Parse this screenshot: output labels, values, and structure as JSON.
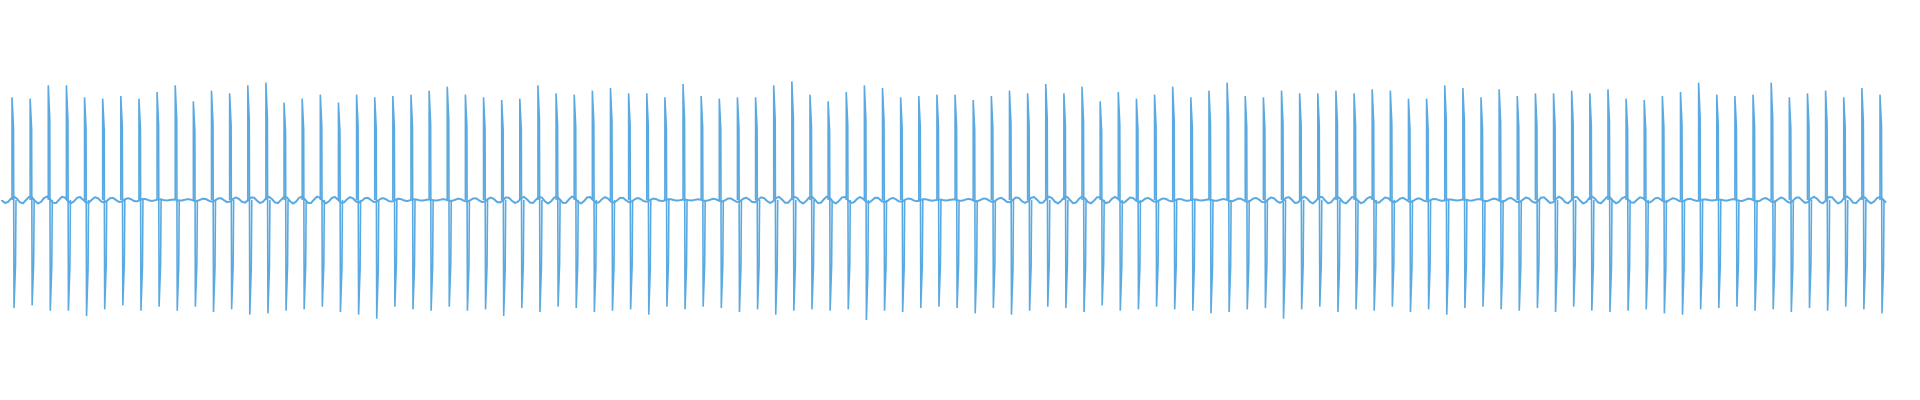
{
  "chart_data": {
    "type": "waveform",
    "color": "#5aa9e0",
    "ylim": [
      -1.5,
      1.5
    ],
    "values": [
      0.77,
      0.76,
      0.86,
      0.86,
      0.77,
      0.76,
      0.78,
      0.76,
      0.81,
      0.86,
      0.74,
      0.82,
      0.8,
      0.86,
      0.88,
      0.73,
      0.76,
      0.79,
      0.73,
      0.79,
      0.77,
      0.78,
      0.79,
      0.82,
      0.85,
      0.79,
      0.77,
      0.75,
      0.76,
      0.86,
      0.8,
      0.79,
      0.82,
      0.84,
      0.8,
      0.8,
      0.77,
      0.87,
      0.78,
      0.76,
      0.77,
      0.77,
      0.86,
      0.89,
      0.79,
      0.74,
      0.81,
      0.86,
      0.84,
      0.77,
      0.78,
      0.79,
      0.79,
      0.75,
      0.78,
      0.82,
      0.8,
      0.87,
      0.8,
      0.85,
      0.74,
      0.81,
      0.76,
      0.79,
      0.85,
      0.77,
      0.82,
      0.88,
      0.78,
      0.77,
      0.82,
      0.8,
      0.8,
      0.82,
      0.8,
      0.83,
      0.82,
      0.76,
      0.76,
      0.86,
      0.84,
      0.77,
      0.83,
      0.78,
      0.8,
      0.8,
      0.82,
      0.8,
      0.83,
      0.76,
      0.75,
      0.78,
      0.81,
      0.88,
      0.79,
      0.78,
      0.79,
      0.88,
      0.77,
      0.8,
      0.82,
      0.77,
      0.84,
      0.79
    ],
    "troughs": [
      -0.81,
      -0.79,
      -0.83,
      -0.83,
      -0.87,
      -0.82,
      -0.79,
      -0.83,
      -0.8,
      -0.83,
      -0.8,
      -0.84,
      -0.82,
      -0.86,
      -0.85,
      -0.83,
      -0.82,
      -0.8,
      -0.84,
      -0.86,
      -0.89,
      -0.8,
      -0.82,
      -0.83,
      -0.8,
      -0.83,
      -0.82,
      -0.87,
      -0.81,
      -0.84,
      -0.8,
      -0.81,
      -0.84,
      -0.83,
      -0.82,
      -0.86,
      -0.8,
      -0.82,
      -0.8,
      -0.81,
      -0.84,
      -0.82,
      -0.86,
      -0.83,
      -0.82,
      -0.83,
      -0.82,
      -0.9,
      -0.83,
      -0.84,
      -0.81,
      -0.8,
      -0.81,
      -0.85,
      -0.81,
      -0.86,
      -0.83,
      -0.8,
      -0.81,
      -0.84,
      -0.79,
      -0.83,
      -0.82,
      -0.8,
      -0.82,
      -0.83,
      -0.85,
      -0.84,
      -0.82,
      -0.81,
      -0.89,
      -0.82,
      -0.8,
      -0.84,
      -0.82,
      -0.83,
      -0.8,
      -0.84,
      -0.82,
      -0.86,
      -0.81,
      -0.8,
      -0.82,
      -0.83,
      -0.81,
      -0.84,
      -0.8,
      -0.83,
      -0.84,
      -0.83,
      -0.82,
      -0.85,
      -0.86,
      -0.82,
      -0.81,
      -0.8,
      -0.83,
      -0.82,
      -0.84,
      -0.81,
      -0.83,
      -0.8,
      -0.82,
      -0.85
    ]
  }
}
